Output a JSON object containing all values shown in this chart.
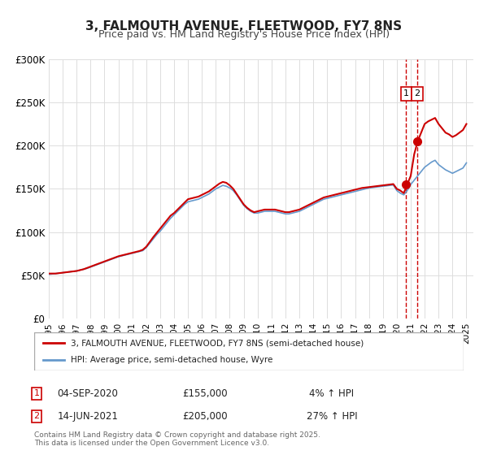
{
  "title": "3, FALMOUTH AVENUE, FLEETWOOD, FY7 8NS",
  "subtitle": "Price paid vs. HM Land Registry's House Price Index (HPI)",
  "xlabel": "",
  "ylabel": "",
  "ylim": [
    0,
    300000
  ],
  "yticks": [
    0,
    50000,
    100000,
    150000,
    200000,
    250000,
    300000
  ],
  "ytick_labels": [
    "£0",
    "£50K",
    "£100K",
    "£150K",
    "£200K",
    "£250K",
    "£300K"
  ],
  "xlim_start": 1995.0,
  "xlim_end": 2025.5,
  "xticks": [
    1995,
    1996,
    1997,
    1998,
    1999,
    2000,
    2001,
    2002,
    2003,
    2004,
    2005,
    2006,
    2007,
    2008,
    2009,
    2010,
    2011,
    2012,
    2013,
    2014,
    2015,
    2016,
    2017,
    2018,
    2019,
    2020,
    2021,
    2022,
    2023,
    2024,
    2025
  ],
  "red_color": "#cc0000",
  "blue_color": "#6699cc",
  "marker_color": "#cc0000",
  "vline_color": "#cc0000",
  "legend_label_red": "3, FALMOUTH AVENUE, FLEETWOOD, FY7 8NS (semi-detached house)",
  "legend_label_blue": "HPI: Average price, semi-detached house, Wyre",
  "annotation1_num": "1",
  "annotation1_date": "04-SEP-2020",
  "annotation1_price": "£155,000",
  "annotation1_hpi": "4% ↑ HPI",
  "annotation2_num": "2",
  "annotation2_date": "14-JUN-2021",
  "annotation2_price": "£205,000",
  "annotation2_hpi": "27% ↑ HPI",
  "footer": "Contains HM Land Registry data © Crown copyright and database right 2025.\nThis data is licensed under the Open Government Licence v3.0.",
  "sale1_x": 2020.67,
  "sale1_y": 155000,
  "sale2_x": 2021.45,
  "sale2_y": 205000,
  "vline1_x": 2020.67,
  "vline2_x": 2021.45,
  "hpi_series_x": [
    1995.0,
    1995.25,
    1995.5,
    1995.75,
    1996.0,
    1996.25,
    1996.5,
    1996.75,
    1997.0,
    1997.25,
    1997.5,
    1997.75,
    1998.0,
    1998.25,
    1998.5,
    1998.75,
    1999.0,
    1999.25,
    1999.5,
    1999.75,
    2000.0,
    2000.25,
    2000.5,
    2000.75,
    2001.0,
    2001.25,
    2001.5,
    2001.75,
    2002.0,
    2002.25,
    2002.5,
    2002.75,
    2003.0,
    2003.25,
    2003.5,
    2003.75,
    2004.0,
    2004.25,
    2004.5,
    2004.75,
    2005.0,
    2005.25,
    2005.5,
    2005.75,
    2006.0,
    2006.25,
    2006.5,
    2006.75,
    2007.0,
    2007.25,
    2007.5,
    2007.75,
    2008.0,
    2008.25,
    2008.5,
    2008.75,
    2009.0,
    2009.25,
    2009.5,
    2009.75,
    2010.0,
    2010.25,
    2010.5,
    2010.75,
    2011.0,
    2011.25,
    2011.5,
    2011.75,
    2012.0,
    2012.25,
    2012.5,
    2012.75,
    2013.0,
    2013.25,
    2013.5,
    2013.75,
    2014.0,
    2014.25,
    2014.5,
    2014.75,
    2015.0,
    2015.25,
    2015.5,
    2015.75,
    2016.0,
    2016.25,
    2016.5,
    2016.75,
    2017.0,
    2017.25,
    2017.5,
    2017.75,
    2018.0,
    2018.25,
    2018.5,
    2018.75,
    2019.0,
    2019.25,
    2019.5,
    2019.75,
    2020.0,
    2020.25,
    2020.5,
    2020.75,
    2021.0,
    2021.25,
    2021.5,
    2021.75,
    2022.0,
    2022.25,
    2022.5,
    2022.75,
    2023.0,
    2023.25,
    2023.5,
    2023.75,
    2024.0,
    2024.25,
    2024.5,
    2024.75,
    2025.0
  ],
  "hpi_series_y": [
    51000,
    51500,
    52000,
    52500,
    53000,
    53500,
    54000,
    54500,
    55000,
    56000,
    57000,
    58000,
    59500,
    61000,
    62500,
    64000,
    65500,
    67000,
    68500,
    70000,
    71500,
    72500,
    73500,
    74500,
    75500,
    76500,
    77500,
    78500,
    82000,
    87000,
    92000,
    97000,
    101000,
    106000,
    111000,
    116000,
    120000,
    124000,
    128000,
    132000,
    135000,
    136000,
    137000,
    138000,
    140000,
    142000,
    144000,
    147000,
    150000,
    152000,
    154000,
    153000,
    151000,
    148000,
    143000,
    137000,
    131000,
    127000,
    124000,
    122000,
    122000,
    123000,
    124000,
    124000,
    124000,
    124000,
    123000,
    122000,
    121000,
    121000,
    122000,
    123000,
    124000,
    126000,
    128000,
    130000,
    132000,
    134000,
    136000,
    138000,
    139000,
    140000,
    141000,
    142000,
    143000,
    144000,
    145000,
    146000,
    147000,
    148000,
    149000,
    150000,
    151000,
    151500,
    152000,
    152500,
    153000,
    153500,
    154000,
    154500,
    148000,
    145000,
    143000,
    148000,
    155000,
    160000,
    165000,
    170000,
    175000,
    178000,
    181000,
    183000,
    178000,
    175000,
    172000,
    170000,
    168000,
    170000,
    172000,
    174000,
    180000
  ],
  "price_series_x": [
    1995.0,
    1995.25,
    1995.5,
    1995.75,
    1996.0,
    1996.25,
    1996.5,
    1996.75,
    1997.0,
    1997.25,
    1997.5,
    1997.75,
    1998.0,
    1998.25,
    1998.5,
    1998.75,
    1999.0,
    1999.25,
    1999.5,
    1999.75,
    2000.0,
    2000.25,
    2000.5,
    2000.75,
    2001.0,
    2001.25,
    2001.5,
    2001.75,
    2002.0,
    2002.25,
    2002.5,
    2002.75,
    2003.0,
    2003.25,
    2003.5,
    2003.75,
    2004.0,
    2004.25,
    2004.5,
    2004.75,
    2005.0,
    2005.25,
    2005.5,
    2005.75,
    2006.0,
    2006.25,
    2006.5,
    2006.75,
    2007.0,
    2007.25,
    2007.5,
    2007.75,
    2008.0,
    2008.25,
    2008.5,
    2008.75,
    2009.0,
    2009.25,
    2009.5,
    2009.75,
    2010.0,
    2010.25,
    2010.5,
    2010.75,
    2011.0,
    2011.25,
    2011.5,
    2011.75,
    2012.0,
    2012.25,
    2012.5,
    2012.75,
    2013.0,
    2013.25,
    2013.5,
    2013.75,
    2014.0,
    2014.25,
    2014.5,
    2014.75,
    2015.0,
    2015.25,
    2015.5,
    2015.75,
    2016.0,
    2016.25,
    2016.5,
    2016.75,
    2017.0,
    2017.25,
    2017.5,
    2017.75,
    2018.0,
    2018.25,
    2018.5,
    2018.75,
    2019.0,
    2019.25,
    2019.5,
    2019.75,
    2020.0,
    2020.25,
    2020.5,
    2020.75,
    2021.0,
    2021.25,
    2021.5,
    2021.75,
    2022.0,
    2022.25,
    2022.5,
    2022.75,
    2023.0,
    2023.25,
    2023.5,
    2023.75,
    2024.0,
    2024.25,
    2024.5,
    2024.75,
    2025.0
  ],
  "price_series_y": [
    52000,
    52000,
    52000,
    52500,
    53000,
    53500,
    54000,
    54500,
    55000,
    56000,
    57000,
    58500,
    60000,
    61500,
    63000,
    64500,
    66000,
    67500,
    69000,
    70500,
    72000,
    73000,
    74000,
    75000,
    76000,
    77000,
    78000,
    79500,
    83000,
    88500,
    94000,
    99000,
    104000,
    109000,
    114000,
    119000,
    122000,
    126000,
    130000,
    134000,
    138000,
    139000,
    140000,
    141000,
    143000,
    145000,
    147000,
    150000,
    153000,
    156000,
    158000,
    157000,
    154000,
    150000,
    144000,
    138000,
    132000,
    128000,
    125000,
    123000,
    124000,
    125000,
    126000,
    126000,
    126000,
    126000,
    125000,
    124000,
    123000,
    123000,
    124000,
    125000,
    126000,
    128000,
    130000,
    132000,
    134000,
    136000,
    138000,
    140000,
    141000,
    142000,
    143000,
    144000,
    145000,
    146000,
    147000,
    148000,
    149000,
    150000,
    151000,
    151500,
    152000,
    152500,
    153000,
    153500,
    154000,
    154500,
    155000,
    155500,
    150000,
    148000,
    145000,
    155000,
    165000,
    190000,
    205000,
    215000,
    225000,
    228000,
    230000,
    232000,
    225000,
    220000,
    215000,
    213000,
    210000,
    212000,
    215000,
    218000,
    225000
  ]
}
